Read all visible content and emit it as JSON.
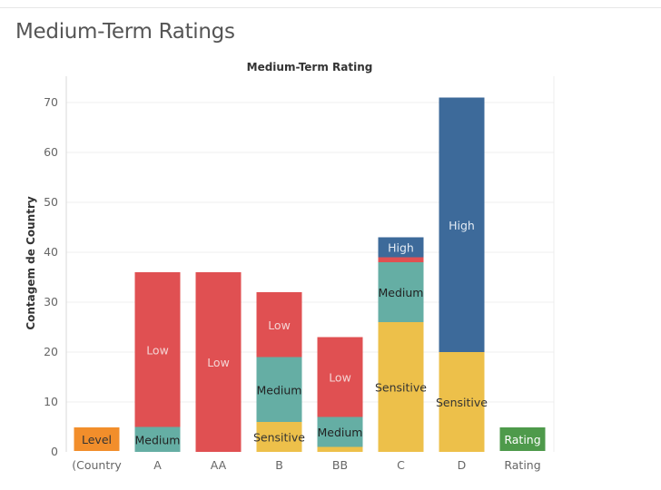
{
  "page": {
    "title": "Medium-Term Ratings"
  },
  "chart_data": {
    "type": "bar",
    "stacked": true,
    "title": "Medium-Term Rating",
    "xlabel": "",
    "ylabel": "Contagem de Country",
    "ylim": [
      0,
      72
    ],
    "yticks": [
      0,
      10,
      20,
      30,
      40,
      50,
      60,
      70
    ],
    "grid": true,
    "categories": [
      "(Country",
      "A",
      "AA",
      "B",
      "BB",
      "C",
      "D",
      "Rating"
    ],
    "series": [
      {
        "name": "Sensitive",
        "color": "#edc04a",
        "label_color": "#333333",
        "values": [
          0,
          0,
          0,
          6,
          1,
          26,
          20,
          0
        ]
      },
      {
        "name": "Medium",
        "color": "#65aea4",
        "label_color": "#222222",
        "values": [
          0,
          5,
          0,
          13,
          6,
          12,
          0,
          0
        ]
      },
      {
        "name": "Low",
        "color": "#e05052",
        "label_color": "#f4d4d4",
        "values": [
          0,
          31,
          36,
          13,
          16,
          1,
          0,
          0
        ]
      },
      {
        "name": "High",
        "color": "#3d6a9a",
        "label_color": "#e3ebf4",
        "values": [
          0,
          0,
          0,
          0,
          0,
          4,
          51,
          0
        ]
      }
    ],
    "segment_labels": [
      {
        "category": "A",
        "series": "Medium",
        "text": "Medium"
      },
      {
        "category": "A",
        "series": "Low",
        "text": "Low"
      },
      {
        "category": "AA",
        "series": "Low",
        "text": "Low"
      },
      {
        "category": "B",
        "series": "Sensitive",
        "text": "Sensitive"
      },
      {
        "category": "B",
        "series": "Medium",
        "text": "Medium"
      },
      {
        "category": "B",
        "series": "Low",
        "text": "Low"
      },
      {
        "category": "BB",
        "series": "Medium",
        "text": "Medium"
      },
      {
        "category": "BB",
        "series": "Low",
        "text": "Low"
      },
      {
        "category": "C",
        "series": "Sensitive",
        "text": "Sensitive"
      },
      {
        "category": "C",
        "series": "Medium",
        "text": "Medium"
      },
      {
        "category": "C",
        "series": "High",
        "text": "High"
      },
      {
        "category": "D",
        "series": "Sensitive",
        "text": "Sensitive"
      },
      {
        "category": "D",
        "series": "High",
        "text": "High"
      }
    ],
    "legend_boxes": [
      {
        "category": "(Country",
        "text": "Level",
        "color": "#f28e2b",
        "text_color": "#333333"
      },
      {
        "category": "Rating",
        "text": "Rating",
        "color": "#4e9a4b",
        "text_color": "#ffffff"
      }
    ]
  }
}
